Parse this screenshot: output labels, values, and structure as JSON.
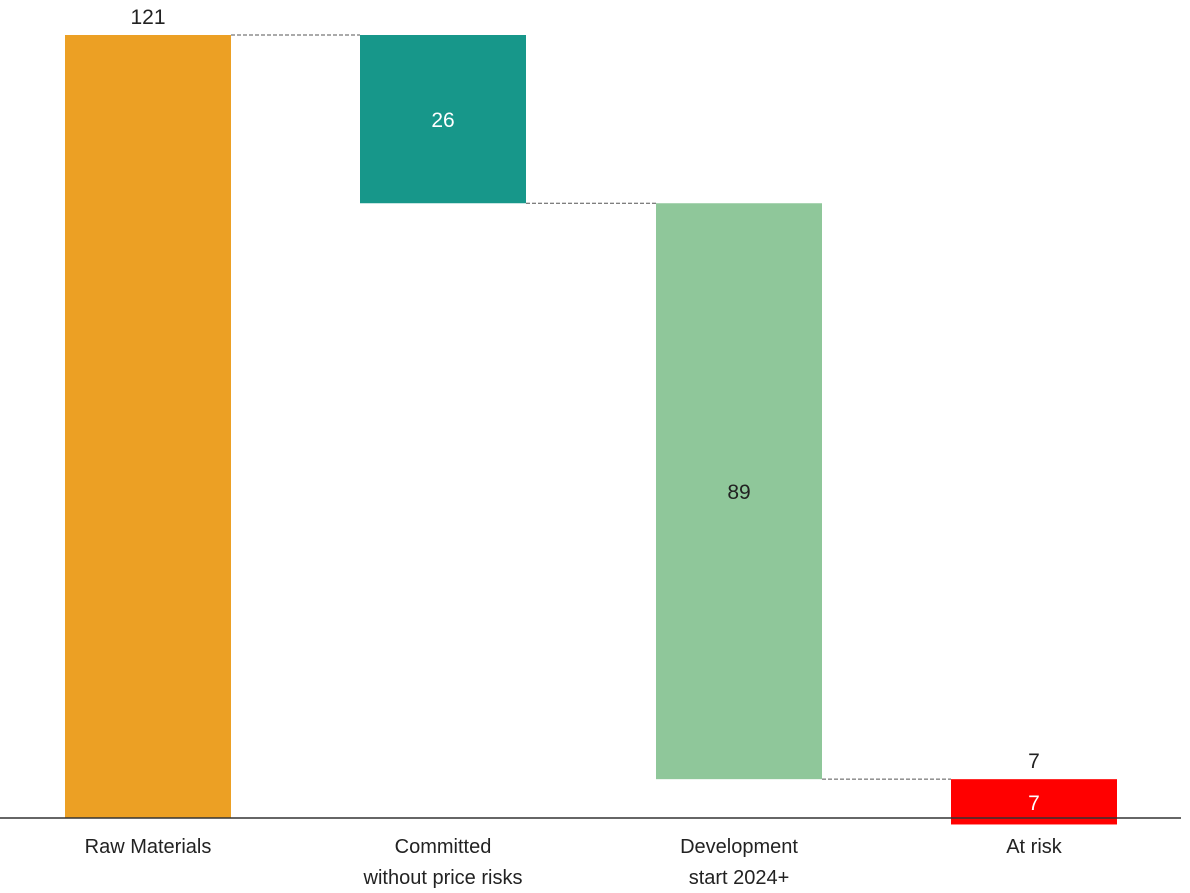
{
  "chart_data": {
    "type": "waterfall",
    "categories": [
      [
        "Raw Materials"
      ],
      [
        "Committed",
        "without price risks"
      ],
      [
        "Development",
        "start 2024+"
      ],
      [
        "At risk"
      ]
    ],
    "steps": [
      {
        "name": "Raw Materials",
        "kind": "total",
        "value": 121,
        "color": "#eca024",
        "label": "121",
        "label_position": "above",
        "label_color": "#222222"
      },
      {
        "name": "Committed without price risks",
        "kind": "decrease",
        "value": 26,
        "color": "#17978a",
        "label": "26",
        "label_position": "inside",
        "label_color": "#ffffff"
      },
      {
        "name": "Development start 2024+",
        "kind": "decrease",
        "value": 89,
        "color": "#8fc79a",
        "label": "89",
        "label_position": "inside",
        "label_color": "#222222"
      },
      {
        "name": "At risk",
        "kind": "decrease",
        "value": 7,
        "color": "#ff0000",
        "label": "7",
        "label_position": "inside",
        "label_color": "#ffffff",
        "extra_label": "7",
        "extra_label_position": "above",
        "extra_label_color": "#222222"
      }
    ],
    "ylim": [
      0,
      121
    ],
    "connector_lines": true,
    "grid": false,
    "title": "",
    "xlabel": "",
    "ylabel": ""
  }
}
